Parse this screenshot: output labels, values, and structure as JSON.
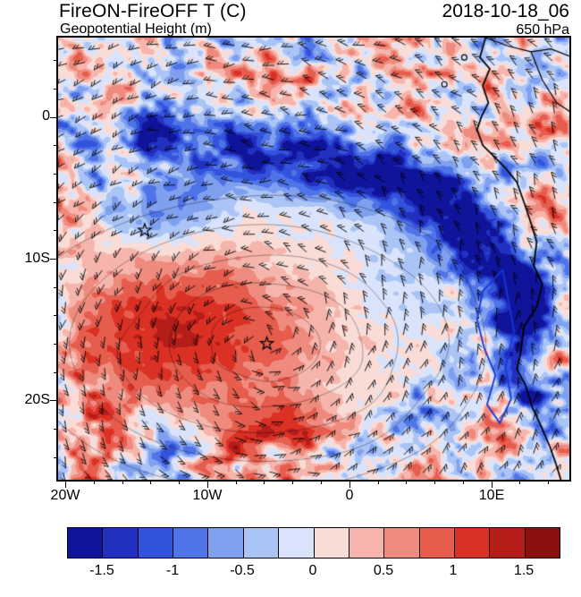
{
  "header": {
    "title": "FireON-FireOFF T (C)",
    "subtitle": "Geopotential Height (m)",
    "datetime": "2018-10-18_06",
    "level": "650 hPa"
  },
  "axes": {
    "x": {
      "ticks": [
        {
          "value": -20,
          "label": "20W"
        },
        {
          "value": -10,
          "label": "10W"
        },
        {
          "value": 0,
          "label": "0"
        },
        {
          "value": 10,
          "label": "10E"
        }
      ]
    },
    "y": {
      "ticks": [
        {
          "value": 0,
          "label": "0"
        },
        {
          "value": -10,
          "label": "10S"
        },
        {
          "value": -20,
          "label": "20S"
        }
      ]
    }
  },
  "colorbar": {
    "min": -1.75,
    "max": 1.75,
    "bin_width": 0.25,
    "colors": [
      "#10149b",
      "#2230c0",
      "#3353dd",
      "#4f74e8",
      "#7f9fef",
      "#abc4f6",
      "#d9e3fb",
      "#fadcd7",
      "#f6b5ac",
      "#ef8b7e",
      "#e65c4d",
      "#da3124",
      "#b41d1a",
      "#8a100f"
    ],
    "tick_labels": [
      "-1.5",
      "-1",
      "-0.5",
      "0",
      "0.5",
      "1",
      "1.5"
    ],
    "tick_values": [
      -1.5,
      -1,
      -0.5,
      0,
      0.5,
      1,
      1.5
    ]
  },
  "map": {
    "lon_min": -20.5,
    "lon_max": 15.5,
    "lat_min": -25.6,
    "lat_max": 5.6,
    "markers": [
      {
        "name": "star",
        "lon": -14.4,
        "lat": -8.0
      },
      {
        "name": "star",
        "lon": -5.8,
        "lat": -16.0
      }
    ],
    "symbols": [
      {
        "name": "circle",
        "lon": 8.1,
        "lat": 4.2
      },
      {
        "name": "circle",
        "lon": 6.7,
        "lat": 2.3
      }
    ],
    "coastline": [
      [
        9.6,
        5.6
      ],
      [
        9.2,
        4.2
      ],
      [
        9.9,
        3.4
      ],
      [
        9.4,
        2.2
      ],
      [
        9.8,
        1.0
      ],
      [
        9.3,
        0.0
      ],
      [
        9.0,
        -0.9
      ],
      [
        9.4,
        -2.0
      ],
      [
        11.0,
        -3.6
      ],
      [
        11.8,
        -4.6
      ],
      [
        12.3,
        -6.0
      ],
      [
        12.8,
        -7.5
      ],
      [
        13.2,
        -8.8
      ],
      [
        13.0,
        -10.5
      ],
      [
        13.6,
        -11.8
      ],
      [
        13.2,
        -13.4
      ],
      [
        12.3,
        -14.8
      ],
      [
        12.1,
        -16.5
      ],
      [
        11.8,
        -17.8
      ],
      [
        12.4,
        -18.9
      ],
      [
        12.9,
        -20.5
      ],
      [
        13.5,
        -21.8
      ],
      [
        14.1,
        -23.2
      ],
      [
        14.5,
        -24.3
      ],
      [
        14.9,
        -25.6
      ]
    ],
    "borders": [
      [
        [
          9.6,
          5.6
        ],
        [
          11.2,
          5.0
        ],
        [
          12.8,
          4.6
        ],
        [
          14.2,
          4.8
        ],
        [
          15.5,
          4.3
        ]
      ],
      [
        [
          12.8,
          4.6
        ],
        [
          13.6,
          2.6
        ],
        [
          14.6,
          1.0
        ],
        [
          15.5,
          0.4
        ]
      ]
    ],
    "blue_contour": [
      [
        10.8,
        -10.8
      ],
      [
        9.4,
        -12.3
      ],
      [
        9.0,
        -14.3
      ],
      [
        9.5,
        -16.3
      ],
      [
        10.3,
        -18.2
      ],
      [
        9.7,
        -20.3
      ],
      [
        10.6,
        -21.6
      ],
      [
        11.4,
        -19.9
      ],
      [
        11.0,
        -17.6
      ],
      [
        11.6,
        -15.1
      ],
      [
        11.2,
        -12.9
      ],
      [
        10.8,
        -10.8
      ]
    ],
    "circulation_center": {
      "lon": -6.0,
      "lat": -16.0
    }
  },
  "field_model": {
    "gaussians": [
      {
        "lon": -11.8,
        "lat": -15.4,
        "sx": 6.2,
        "sy": 4.0,
        "amp": 0.9
      },
      {
        "lon": -8.5,
        "lat": -13.5,
        "sx": 10.5,
        "sy": 6.3,
        "amp": 0.45
      },
      {
        "lon": 4.5,
        "lat": -9.5,
        "sx": 8.5,
        "sy": 6.0,
        "amp": -0.5
      },
      {
        "lon": -13.2,
        "lat": -6.2,
        "sx": 3.2,
        "sy": 2.4,
        "amp": -1.0
      },
      {
        "lon": -4.5,
        "lat": -22.5,
        "sx": 2.5,
        "sy": 1.8,
        "amp": 0.9
      }
    ],
    "bands": [
      {
        "amp": -1.5,
        "sigma": 1.6,
        "pts": [
          [
            -14,
            -1.6
          ],
          [
            -9,
            -2.4
          ],
          [
            -4,
            -3.0
          ],
          [
            0,
            -3.6
          ],
          [
            3.5,
            -4.3
          ],
          [
            6.5,
            -5.8
          ],
          [
            9,
            -8
          ],
          [
            11,
            -10.8
          ],
          [
            12.3,
            -13
          ]
        ]
      },
      {
        "amp": -0.8,
        "sigma": 1.2,
        "pts": [
          [
            12.6,
            -13.5
          ],
          [
            12.0,
            -16.0
          ],
          [
            11.9,
            -18.5
          ],
          [
            12.8,
            -21.0
          ],
          [
            13.8,
            -23.5
          ],
          [
            14.8,
            -25.6
          ]
        ]
      }
    ],
    "noise_mask": {
      "lon": -6.5,
      "lat": -13.0,
      "rx": 14.0,
      "ry": 9.8,
      "inner": 0.13,
      "outer": 0.95
    },
    "land_bias": 0.15
  },
  "chart_data": {
    "type": "heatmap",
    "title": "FireON-FireOFF T (C)",
    "subtitle": "Geopotential Height (m)",
    "timestamp": "2018-10-18_06",
    "pressure_level": "650 hPa",
    "units": "C",
    "xlabel_ticks": [
      "20W",
      "10W",
      "0",
      "10E"
    ],
    "ylabel_ticks": [
      "0",
      "10S",
      "20S"
    ],
    "lon_range": [
      -20.5,
      15.5
    ],
    "lat_range": [
      -25.6,
      5.6
    ],
    "colorbar_ticks": [
      -1.5,
      -1,
      -0.5,
      0,
      0.5,
      1,
      1.5
    ],
    "colorbar_bin_width": 0.25,
    "overlays": [
      "wind barbs",
      "geopotential height contours",
      "coastline",
      "blue boundary contour",
      "two star markers",
      "island circle symbols"
    ],
    "notable_features": [
      {
        "region": "equatorial band ~0-5S, 12W-10E extending SE to Angola coast",
        "anomaly": "strong negative (cooling), down to about -1.5 C"
      },
      {
        "region": "subtropical South Atlantic ~8-20S, 18W-2W",
        "anomaly": "positive (warming), up to about +1.5 C near 12W,15S"
      },
      {
        "region": "coastal Angola/Namibia strip",
        "anomaly": "negative band"
      },
      {
        "region": "map edges, far north, far south and land areas",
        "anomaly": "noisy mixed positive/negative speckle"
      }
    ]
  }
}
